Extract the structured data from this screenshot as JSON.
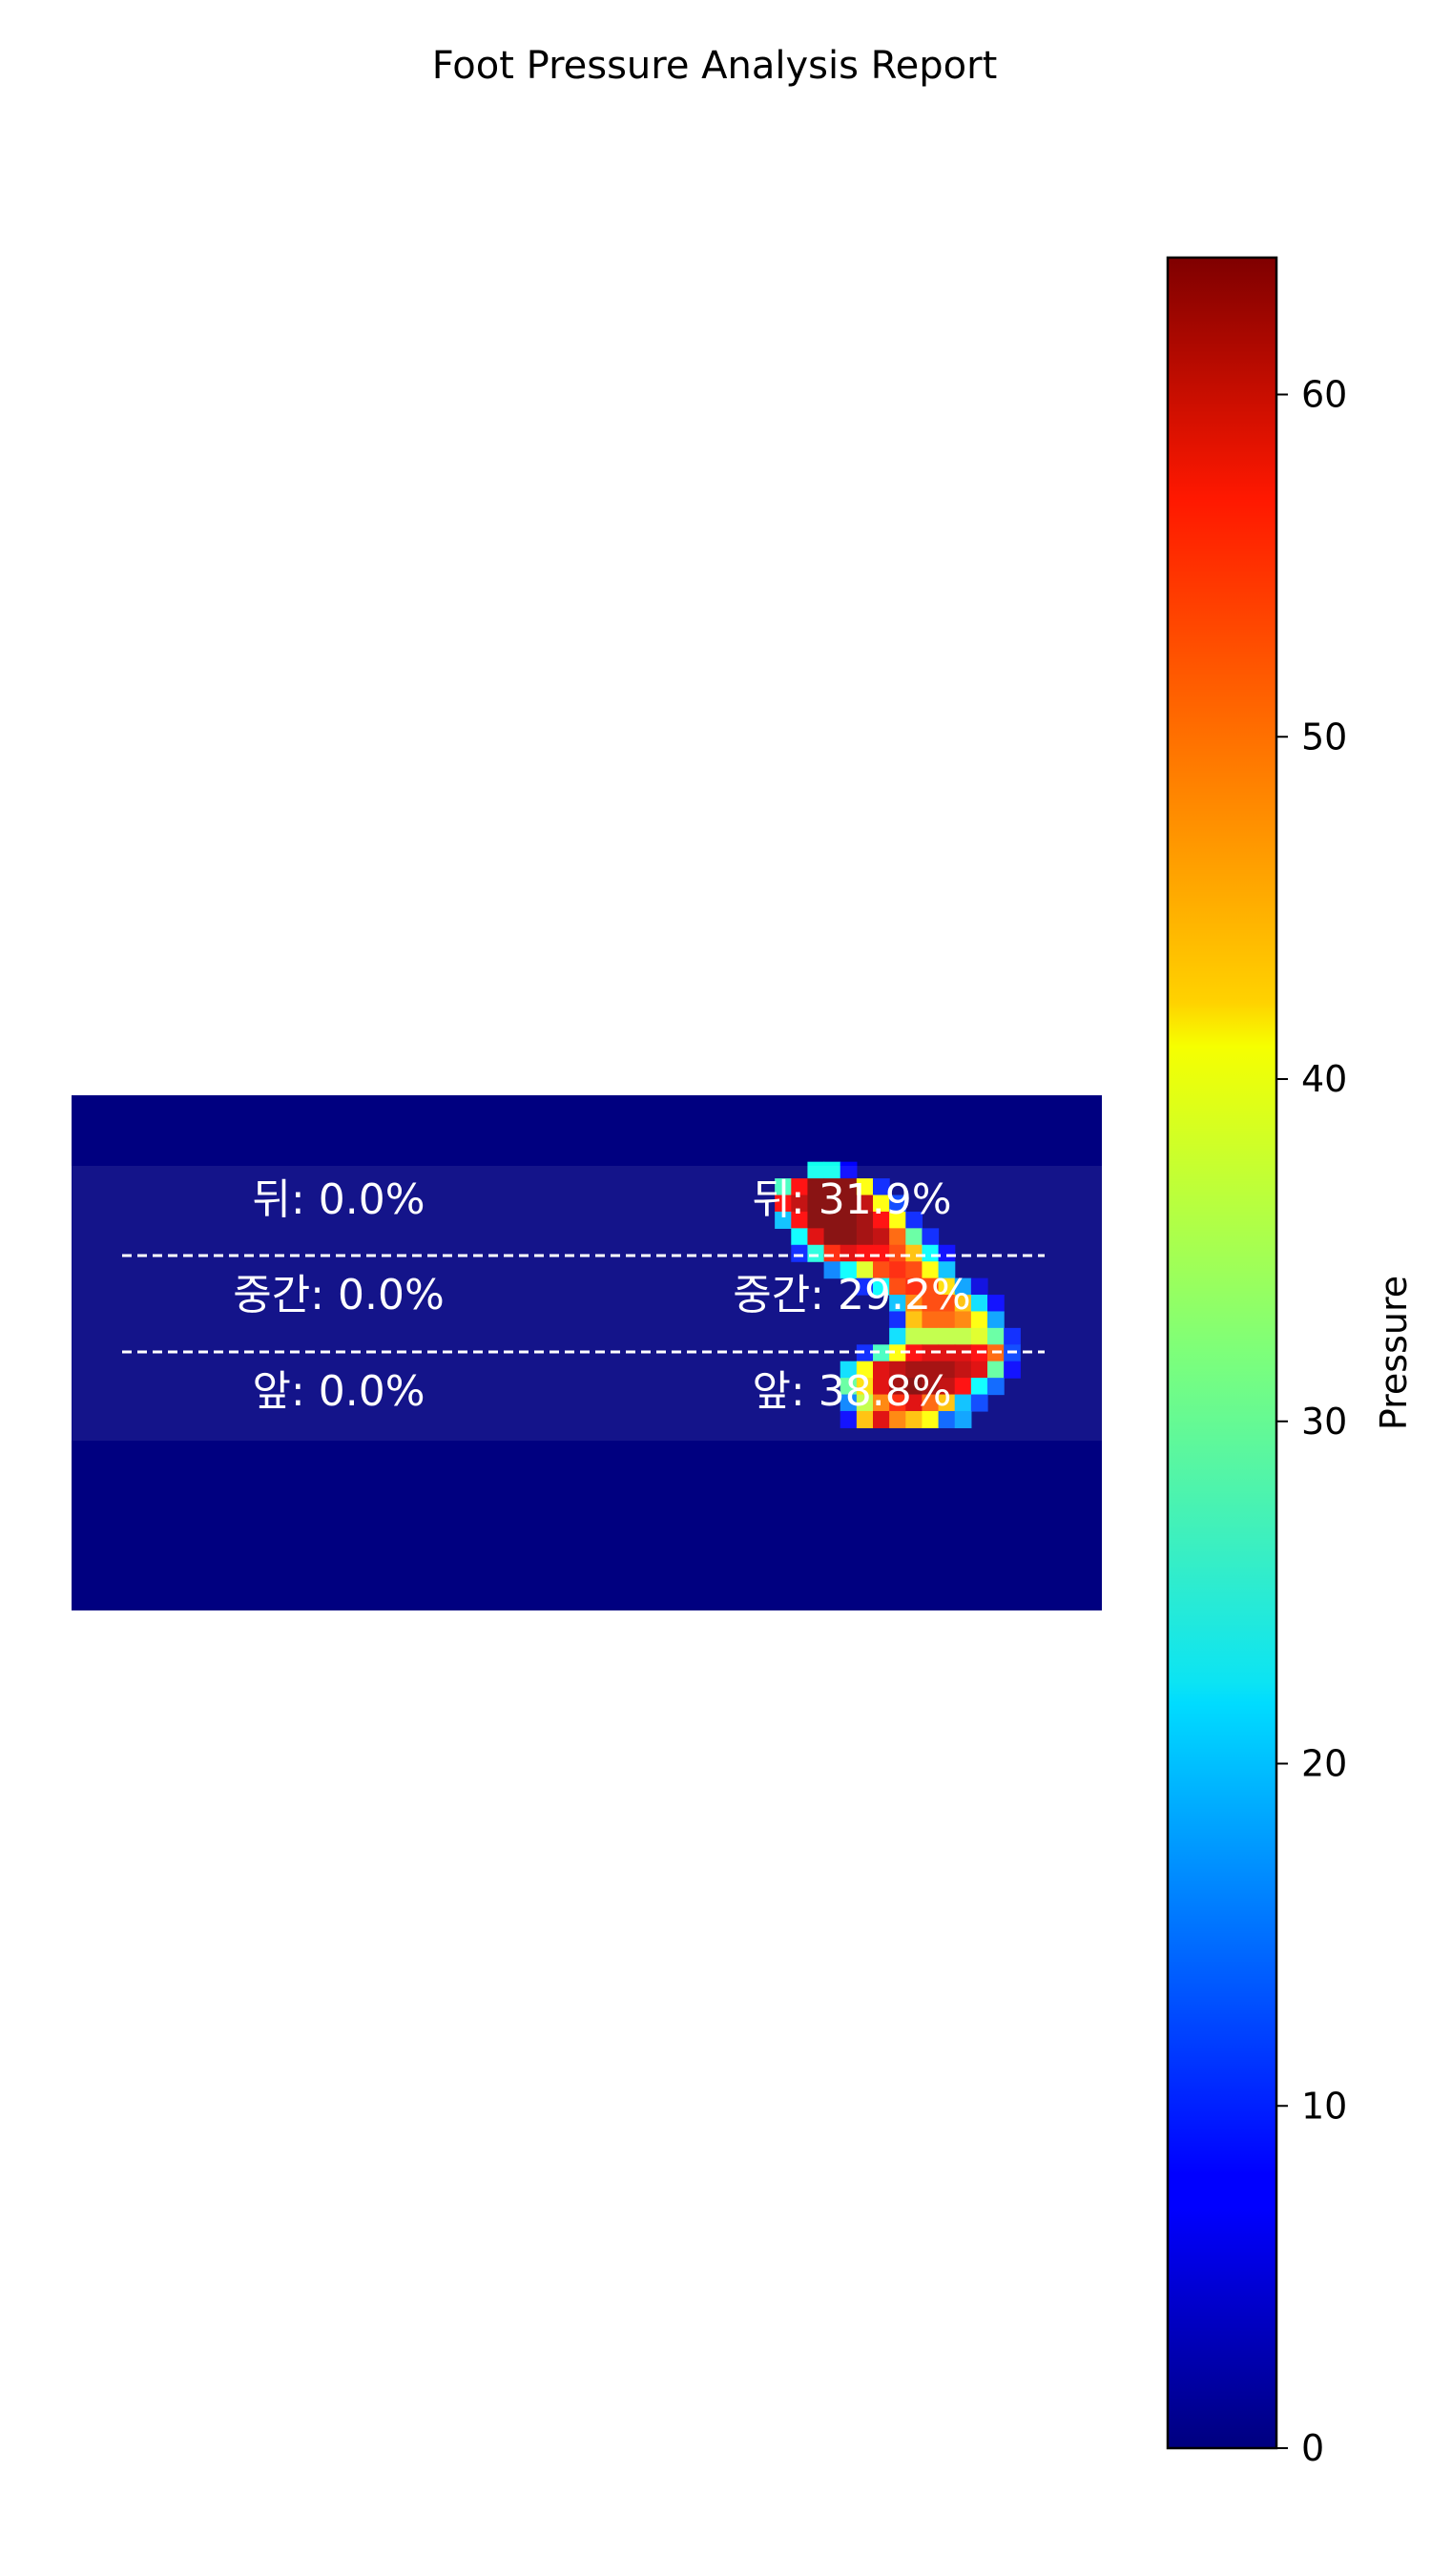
{
  "chart_data": {
    "type": "heatmap",
    "title": "Foot Pressure Analysis Report",
    "colormap": "jet",
    "value_range": [
      0,
      64
    ],
    "colorbar": {
      "label": "Pressure",
      "ticks": [
        0,
        10,
        20,
        30,
        40,
        50,
        60
      ]
    },
    "region_labels": [
      {
        "foot": "left",
        "text": "뒤: 0.0%"
      },
      {
        "foot": "left",
        "text": "중간: 0.0%"
      },
      {
        "foot": "left",
        "text": "앞: 0.0%"
      },
      {
        "foot": "right",
        "text": "뒤: 31.9%"
      },
      {
        "foot": "right",
        "text": "중간: 29.2%"
      },
      {
        "foot": "right",
        "text": "앞: 38.8%"
      }
    ],
    "grid": {
      "cols": 63,
      "rows": 31,
      "nonzero_cells": [
        [
          45,
          4,
          25
        ],
        [
          46,
          4,
          25
        ],
        [
          47,
          4,
          8
        ],
        [
          43,
          5,
          28
        ],
        [
          44,
          5,
          56
        ],
        [
          45,
          5,
          64
        ],
        [
          46,
          5,
          64
        ],
        [
          47,
          5,
          64
        ],
        [
          48,
          5,
          40
        ],
        [
          49,
          5,
          10
        ],
        [
          43,
          6,
          56
        ],
        [
          44,
          6,
          60
        ],
        [
          45,
          6,
          64
        ],
        [
          46,
          6,
          64
        ],
        [
          47,
          6,
          64
        ],
        [
          48,
          6,
          60
        ],
        [
          49,
          6,
          40
        ],
        [
          50,
          6,
          12
        ],
        [
          43,
          7,
          20
        ],
        [
          44,
          7,
          56
        ],
        [
          45,
          7,
          64
        ],
        [
          46,
          7,
          64
        ],
        [
          47,
          7,
          64
        ],
        [
          48,
          7,
          62
        ],
        [
          49,
          7,
          56
        ],
        [
          50,
          7,
          40
        ],
        [
          51,
          7,
          10
        ],
        [
          44,
          8,
          24
        ],
        [
          45,
          8,
          58
        ],
        [
          46,
          8,
          64
        ],
        [
          47,
          8,
          64
        ],
        [
          48,
          8,
          62
        ],
        [
          49,
          8,
          60
        ],
        [
          50,
          8,
          50
        ],
        [
          51,
          8,
          30
        ],
        [
          52,
          8,
          10
        ],
        [
          44,
          9,
          10
        ],
        [
          45,
          9,
          26
        ],
        [
          46,
          9,
          54
        ],
        [
          47,
          9,
          58
        ],
        [
          48,
          9,
          56
        ],
        [
          49,
          9,
          56
        ],
        [
          50,
          9,
          52
        ],
        [
          51,
          9,
          44
        ],
        [
          52,
          9,
          24
        ],
        [
          53,
          9,
          8
        ],
        [
          46,
          10,
          16
        ],
        [
          47,
          10,
          24
        ],
        [
          48,
          10,
          38
        ],
        [
          49,
          10,
          52
        ],
        [
          50,
          10,
          54
        ],
        [
          51,
          10,
          52
        ],
        [
          52,
          10,
          40
        ],
        [
          53,
          10,
          20
        ],
        [
          48,
          11,
          10
        ],
        [
          49,
          11,
          24
        ],
        [
          50,
          11,
          52
        ],
        [
          51,
          11,
          54
        ],
        [
          52,
          11,
          52
        ],
        [
          53,
          11,
          42
        ],
        [
          54,
          11,
          18
        ],
        [
          55,
          11,
          6
        ],
        [
          50,
          12,
          20
        ],
        [
          51,
          12,
          48
        ],
        [
          52,
          12,
          52
        ],
        [
          53,
          12,
          52
        ],
        [
          54,
          12,
          44
        ],
        [
          55,
          12,
          22
        ],
        [
          56,
          12,
          8
        ],
        [
          50,
          13,
          10
        ],
        [
          51,
          13,
          44
        ],
        [
          52,
          13,
          50
        ],
        [
          53,
          13,
          50
        ],
        [
          54,
          13,
          48
        ],
        [
          55,
          13,
          40
        ],
        [
          56,
          13,
          18
        ],
        [
          50,
          14,
          22
        ],
        [
          51,
          14,
          36
        ],
        [
          52,
          14,
          36
        ],
        [
          53,
          14,
          36
        ],
        [
          54,
          14,
          36
        ],
        [
          55,
          14,
          38
        ],
        [
          56,
          14,
          30
        ],
        [
          57,
          14,
          10
        ],
        [
          48,
          15,
          10
        ],
        [
          49,
          15,
          28
        ],
        [
          50,
          15,
          40
        ],
        [
          51,
          15,
          56
        ],
        [
          52,
          15,
          58
        ],
        [
          53,
          15,
          58
        ],
        [
          54,
          15,
          58
        ],
        [
          55,
          15,
          56
        ],
        [
          56,
          15,
          50
        ],
        [
          57,
          15,
          12
        ],
        [
          47,
          16,
          22
        ],
        [
          48,
          16,
          40
        ],
        [
          49,
          16,
          58
        ],
        [
          50,
          16,
          60
        ],
        [
          51,
          16,
          62
        ],
        [
          52,
          16,
          62
        ],
        [
          53,
          16,
          62
        ],
        [
          54,
          16,
          60
        ],
        [
          55,
          16,
          58
        ],
        [
          56,
          16,
          30
        ],
        [
          57,
          16,
          8
        ],
        [
          47,
          17,
          30
        ],
        [
          48,
          17,
          42
        ],
        [
          49,
          17,
          58
        ],
        [
          50,
          17,
          62
        ],
        [
          51,
          17,
          64
        ],
        [
          52,
          17,
          62
        ],
        [
          53,
          17,
          60
        ],
        [
          54,
          17,
          56
        ],
        [
          55,
          17,
          24
        ],
        [
          56,
          17,
          14
        ],
        [
          47,
          18,
          16
        ],
        [
          48,
          18,
          36
        ],
        [
          49,
          18,
          48
        ],
        [
          50,
          18,
          54
        ],
        [
          51,
          18,
          58
        ],
        [
          52,
          18,
          50
        ],
        [
          53,
          18,
          44
        ],
        [
          54,
          18,
          20
        ],
        [
          55,
          18,
          12
        ],
        [
          47,
          19,
          8
        ],
        [
          48,
          19,
          44
        ],
        [
          49,
          19,
          58
        ],
        [
          50,
          19,
          48
        ],
        [
          51,
          19,
          44
        ],
        [
          52,
          19,
          40
        ],
        [
          53,
          19,
          14
        ],
        [
          54,
          19,
          18
        ]
      ]
    }
  }
}
